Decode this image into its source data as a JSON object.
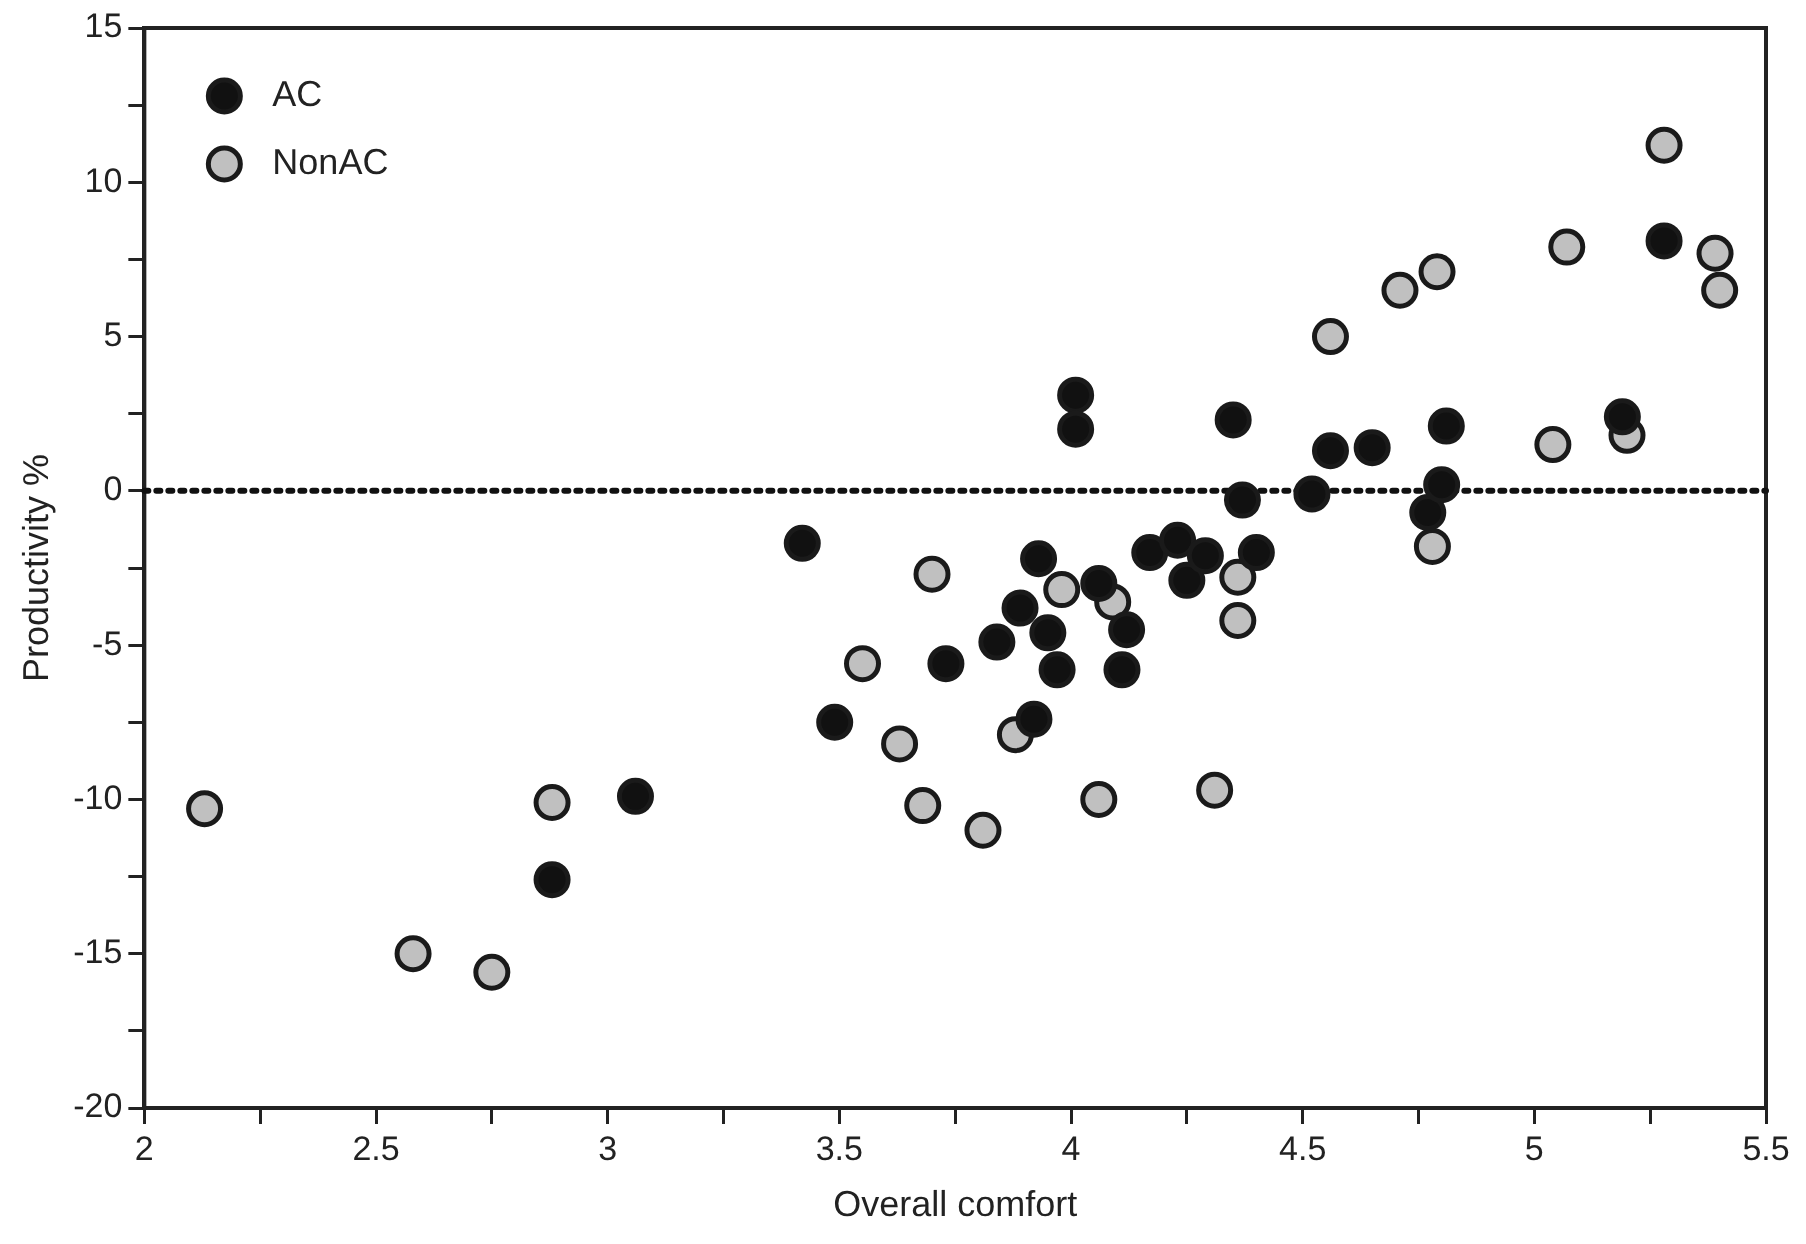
{
  "chart_data": {
    "type": "scatter",
    "xlabel": "Overall comfort",
    "ylabel": "Productivity %",
    "xlim": [
      2,
      5.5
    ],
    "xticks": [
      2,
      {
        "value": 2.25,
        "label": null
      },
      2.5,
      {
        "value": 2.75,
        "label": null
      },
      3,
      {
        "value": 3.25,
        "label": null
      },
      3.5,
      {
        "value": 3.75,
        "label": null
      },
      4,
      {
        "value": 4.25,
        "label": null
      },
      4.5,
      {
        "value": 4.75,
        "label": null
      },
      5,
      {
        "value": 5.25,
        "label": null
      },
      5.5
    ],
    "ylim": [
      -20,
      15
    ],
    "yticks": [
      -20,
      {
        "value": -17.5,
        "label": null
      },
      -15,
      {
        "value": -12.5,
        "label": null
      },
      -10,
      {
        "value": -7.5,
        "label": null
      },
      -5,
      {
        "value": -2.5,
        "label": null
      },
      0,
      {
        "value": 2.5,
        "label": null
      },
      5,
      {
        "value": 7.5,
        "label": null
      },
      10,
      {
        "value": 12.5,
        "label": null
      },
      15
    ],
    "grid": false,
    "legend": "top left",
    "marker": "circle",
    "ref_lines": [
      {
        "axis": "y",
        "value": 0,
        "label": null,
        "color": "#111111",
        "line_style": "dotted"
      }
    ],
    "series": [
      {
        "name": "AC",
        "color": "#111111",
        "x": [
          3.06,
          2.88,
          3.42,
          3.49,
          3.73,
          3.84,
          3.89,
          3.92,
          3.93,
          3.95,
          3.97,
          4.01,
          4.01,
          4.06,
          4.11,
          4.12,
          4.17,
          4.23,
          4.25,
          4.29,
          4.35,
          4.37,
          4.4,
          4.52,
          4.56,
          4.65,
          4.77,
          4.8,
          4.81,
          5.19,
          5.28
        ],
        "values": [
          -9.9,
          -12.6,
          -1.7,
          -7.5,
          -5.6,
          -4.9,
          -3.8,
          -7.4,
          -2.2,
          -4.6,
          -5.8,
          3.1,
          2.0,
          -3.0,
          -5.8,
          -4.5,
          -2.0,
          -1.6,
          -2.9,
          -2.1,
          2.3,
          -0.3,
          -2.0,
          -0.1,
          1.3,
          1.4,
          -0.7,
          0.2,
          2.1,
          2.4,
          8.1
        ]
      },
      {
        "name": "NonAC",
        "color": "#c0c0c0",
        "x": [
          2.13,
          2.58,
          2.75,
          2.88,
          3.55,
          3.63,
          3.68,
          3.7,
          3.81,
          3.88,
          3.98,
          4.06,
          4.09,
          4.31,
          4.36,
          4.36,
          4.56,
          4.71,
          4.78,
          4.79,
          5.04,
          5.07,
          5.2,
          5.28,
          5.39,
          5.4
        ],
        "values": [
          -10.3,
          -15.0,
          -15.6,
          -10.1,
          -5.6,
          -8.2,
          -10.2,
          -2.7,
          -11.0,
          -7.9,
          -3.2,
          -10.0,
          -3.6,
          -9.7,
          -2.8,
          -4.2,
          5.0,
          6.5,
          -1.8,
          7.1,
          1.5,
          7.9,
          1.8,
          11.2,
          7.7,
          6.5
        ]
      }
    ]
  }
}
